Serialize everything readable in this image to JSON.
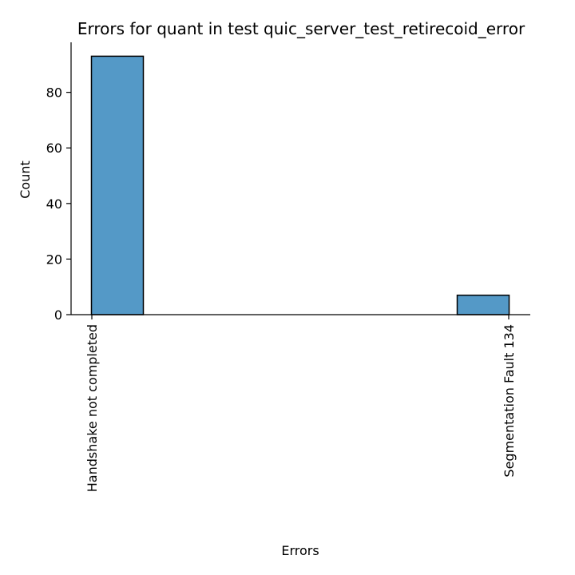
{
  "chart_data": {
    "type": "bar",
    "title": "Errors for quant in test quic_server_test_retirecoid_error",
    "xlabel": "Errors",
    "ylabel": "Count",
    "categories": [
      "Handshake not completed",
      "Segmentation Fault 134"
    ],
    "values": [
      93,
      7
    ],
    "ylim": [
      0,
      98
    ],
    "yticks": [
      0,
      20,
      40,
      60,
      80
    ],
    "grid": false,
    "legend": "none",
    "bar_color": "#5499c7",
    "edge_color": "#000000"
  }
}
